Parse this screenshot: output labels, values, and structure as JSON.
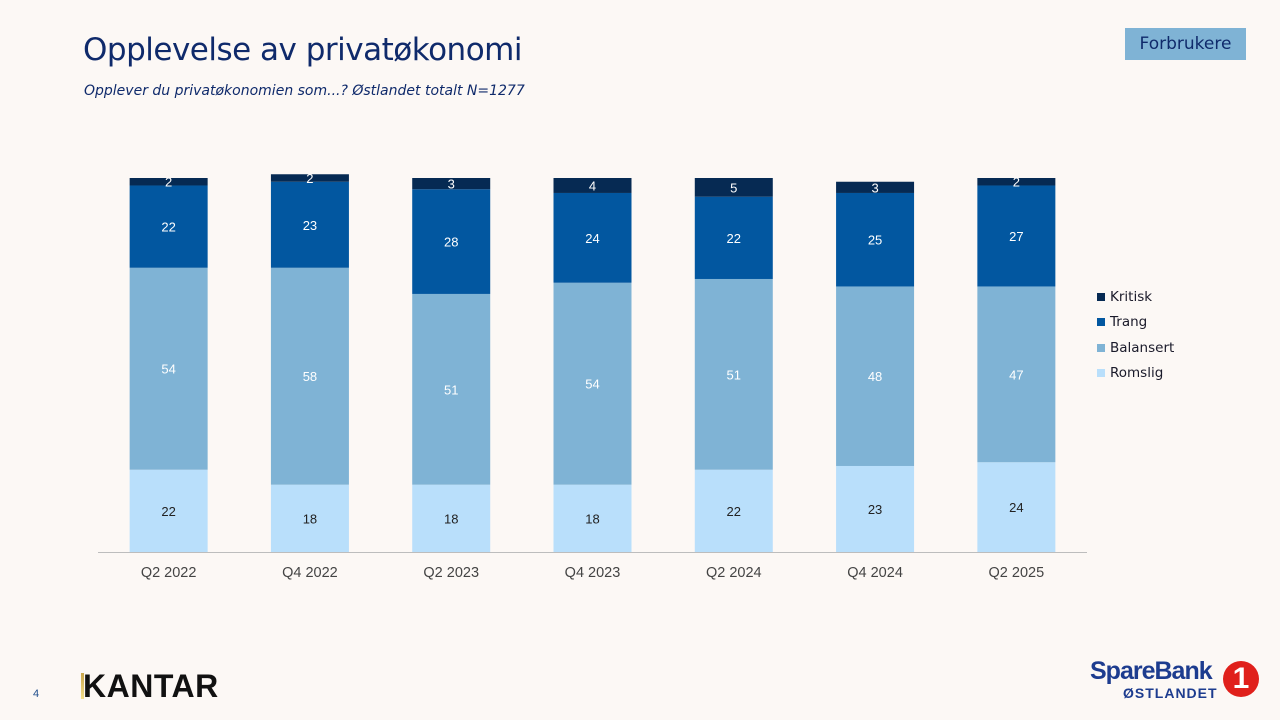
{
  "header": {
    "title": "Opplevelse av privatøkonomi",
    "subtitle": "Opplever du privatøkonomien som...? Østlandet totalt N=1277",
    "badge": "Forbrukere"
  },
  "footer": {
    "page_number": "4",
    "kantar_logo": "KANTAR",
    "bank_logo_name": "SpareBank",
    "bank_logo_sub": "ØSTLANDET",
    "bank_logo_number": "1"
  },
  "chart_data": {
    "type": "bar",
    "stacked": true,
    "title": "Opplevelse av privatøkonomi",
    "categories": [
      "Q2 2022",
      "Q4 2022",
      "Q2 2023",
      "Q4 2023",
      "Q2 2024",
      "Q4 2024",
      "Q2 2025"
    ],
    "series": [
      {
        "name": "Romslig",
        "color": "#b9dffb",
        "label_color": "#222222",
        "values": [
          22,
          18,
          18,
          18,
          22,
          23,
          24
        ]
      },
      {
        "name": "Balansert",
        "color": "#7fb3d5",
        "label_color": "#ffffff",
        "values": [
          54,
          58,
          51,
          54,
          51,
          48,
          47
        ]
      },
      {
        "name": "Trang",
        "color": "#0257a0",
        "label_color": "#ffffff",
        "values": [
          22,
          23,
          28,
          24,
          22,
          25,
          27
        ]
      },
      {
        "name": "Kritisk",
        "color": "#062a53",
        "label_color": "#ffffff",
        "values": [
          2,
          2,
          3,
          4,
          5,
          3,
          2
        ]
      }
    ],
    "legend_order": [
      "Kritisk",
      "Trang",
      "Balansert",
      "Romslig"
    ],
    "legend_position": "right",
    "ylim": [
      0,
      100
    ],
    "grid": false,
    "xlabel": "",
    "ylabel": ""
  }
}
